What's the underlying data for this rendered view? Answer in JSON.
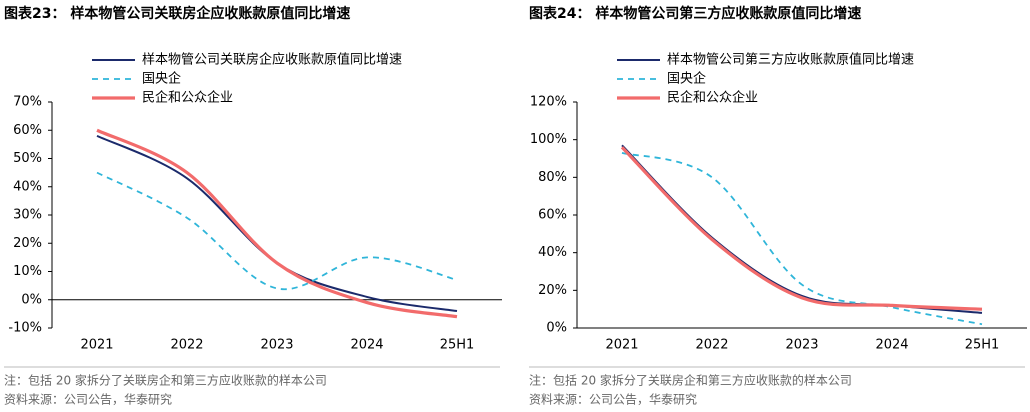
{
  "chart_data": [
    {
      "type": "line",
      "title": "图表23：  样本物管公司关联房企应收账款原值同比增速",
      "categories": [
        "2021",
        "2022",
        "2023",
        "2024",
        "25H1"
      ],
      "series": [
        {
          "name": "样本物管公司关联房企应收账款原值同比增速",
          "color": "#1b2a6b",
          "dash": false,
          "values": [
            58,
            43,
            13,
            1,
            -4
          ]
        },
        {
          "name": "国央企",
          "color": "#2fb5d9",
          "dash": true,
          "values": [
            45,
            29,
            4,
            15,
            7
          ]
        },
        {
          "name": "民企和公众企业",
          "color": "#f26b6b",
          "dash": false,
          "values": [
            60,
            45,
            13,
            -1,
            -6
          ]
        }
      ],
      "ylim": [
        -10,
        70
      ],
      "yticks": [
        {
          "value": -10,
          "label": "-10%"
        },
        {
          "value": 0,
          "label": "0%"
        },
        {
          "value": 10,
          "label": "10%"
        },
        {
          "value": 20,
          "label": "20%"
        },
        {
          "value": 30,
          "label": "30%"
        },
        {
          "value": 40,
          "label": "40%"
        },
        {
          "value": 50,
          "label": "50%"
        },
        {
          "value": 60,
          "label": "60%"
        },
        {
          "value": 70,
          "label": "70%"
        }
      ],
      "notes": [
        "注：包括 20 家拆分了关联房企和第三方应收账款的样本公司",
        "资料来源：公司公告，华泰研究"
      ]
    },
    {
      "type": "line",
      "title": "图表24：  样本物管公司第三方应收账款原值同比增速",
      "categories": [
        "2021",
        "2022",
        "2023",
        "2024",
        "25H1"
      ],
      "series": [
        {
          "name": "样本物管公司第三方应收账款原值同比增速",
          "color": "#1b2a6b",
          "dash": false,
          "values": [
            97,
            48,
            17,
            12,
            8
          ]
        },
        {
          "name": "国央企",
          "color": "#2fb5d9",
          "dash": true,
          "values": [
            93,
            80,
            23,
            11,
            2
          ]
        },
        {
          "name": "民企和公众企业",
          "color": "#f26b6b",
          "dash": false,
          "values": [
            96,
            47,
            16,
            12,
            10
          ]
        }
      ],
      "ylim": [
        0,
        120
      ],
      "yticks": [
        {
          "value": 0,
          "label": "0%"
        },
        {
          "value": 20,
          "label": "20%"
        },
        {
          "value": 40,
          "label": "40%"
        },
        {
          "value": 60,
          "label": "60%"
        },
        {
          "value": 80,
          "label": "80%"
        },
        {
          "value": 100,
          "label": "100%"
        },
        {
          "value": 120,
          "label": "120%"
        }
      ],
      "notes": [
        "注：包括 20 家拆分了关联房企和第三方应收账款的样本公司",
        "资料来源：公司公告，华泰研究"
      ]
    }
  ]
}
